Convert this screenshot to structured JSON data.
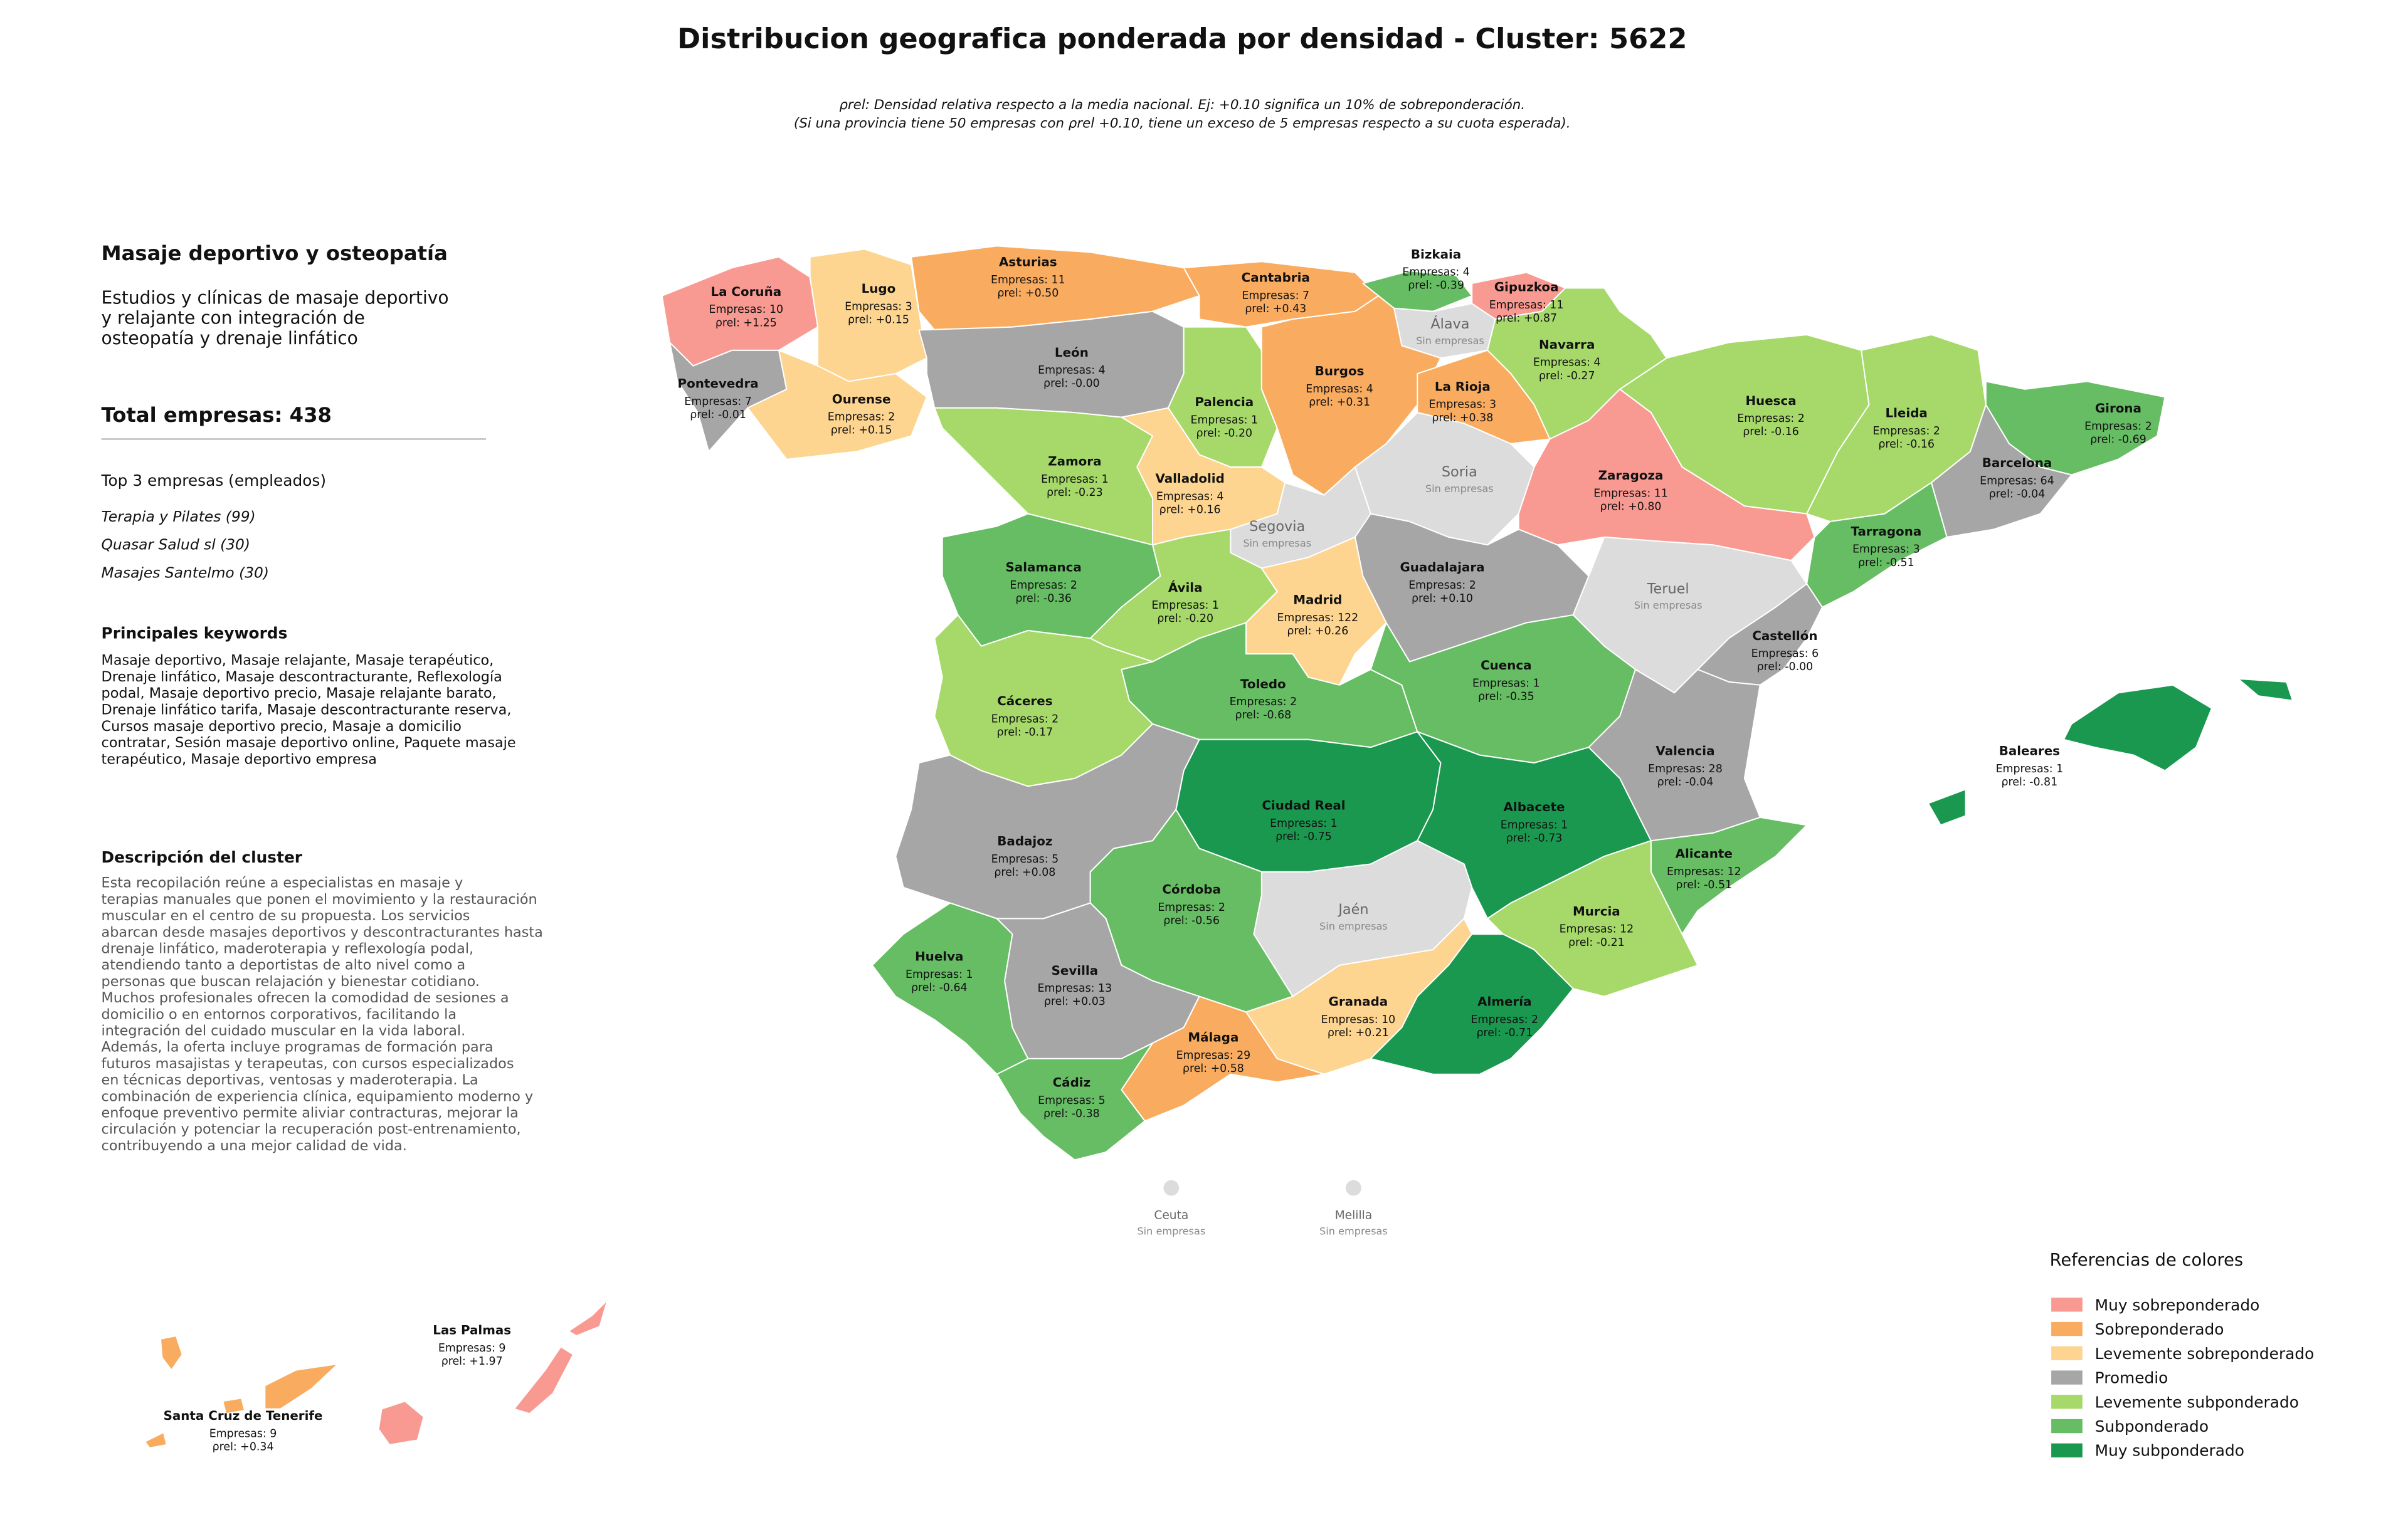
{
  "title": "Distribucion geografica ponderada por densidad - Cluster: 5622",
  "subtitle": [
    "ρrel: Densidad relativa respecto a la media nacional. Ej: +0.10 significa un 10% de sobreponderación.",
    "(Si una provincia tiene 50 empresas con ρrel +0.10, tiene un exceso de 5 empresas respecto a su cuota esperada)."
  ],
  "panel": {
    "heading": "Masaje deportivo y osteopatía",
    "description_lines": [
      "Estudios y clínicas de masaje deportivo",
      "y relajante con integración de",
      "osteopatía y drenaje linfático"
    ],
    "total": "Total empresas: 438",
    "top_title": "Top 3 empresas (empleados)",
    "top": [
      "Terapia y Pilates (99)",
      "Quasar Salud sl (30)",
      "Masajes Santelmo (30)"
    ],
    "keywords_title": "Principales keywords",
    "keywords_lines": [
      "Masaje deportivo, Masaje relajante, Masaje terapéutico,",
      "Drenaje linfático, Masaje descontracturante, Reflexología",
      "podal, Masaje deportivo precio, Masaje relajante barato,",
      "Drenaje linfático tarifa, Masaje descontracturante reserva,",
      "Cursos masaje deportivo precio, Masaje a domicilio",
      "contratar, Sesión masaje deportivo online, Paquete masaje",
      "terapéutico, Masaje deportivo empresa"
    ],
    "cluster_title": "Descripción del cluster",
    "cluster_lines": [
      "Esta recopilación reúne a especialistas en masaje y",
      "terapias manuales que ponen el movimiento y la restauración",
      "muscular en el centro de su propuesta. Los servicios",
      "abarcan desde masajes deportivos y descontracturantes hasta",
      "drenaje linfático, maderoterapia y reflexología podal,",
      "atendiendo tanto a deportistas de alto nivel como a",
      "personas que buscan relajación y bienestar cotidiano.",
      "Muchos profesionales ofrecen la comodidad de sesiones a",
      "domicilio o en entornos corporativos, facilitando la",
      "integración del cuidado muscular en la vida laboral.",
      "Además, la oferta incluye programas de formación para",
      "futuros masajistas y terapeutas, con cursos especializados",
      "en técnicas deportivas, ventosas y maderoterapia. La",
      "combinación de experiencia clínica, equipamiento moderno y",
      "enfoque preventivo permite aliviar contracturas, mejorar la",
      "circulación y potenciar la recuperación post-entrenamiento,",
      "contribuyendo a una mejor calidad de vida."
    ]
  },
  "legend": {
    "title": "Referencias de colores",
    "items": [
      {
        "label": "Muy sobreponderado",
        "color": "#f89a92"
      },
      {
        "label": "Sobreponderado",
        "color": "#f9ac60"
      },
      {
        "label": "Levemente sobreponderado",
        "color": "#fdd590"
      },
      {
        "label": "Promedio",
        "color": "#a6a6a6"
      },
      {
        "label": "Levemente subponderado",
        "color": "#a6d96a"
      },
      {
        "label": "Subponderado",
        "color": "#66bd63"
      },
      {
        "label": "Muy subponderado",
        "color": "#1a9850"
      }
    ]
  },
  "provinces": [
    {
      "name": "La Coruña",
      "color": "#f89a92",
      "empresas": "Empresas: 10",
      "rho": "ρrel: +1.25"
    },
    {
      "name": "Lugo",
      "color": "#fdd590",
      "empresas": "Empresas: 3",
      "rho": "ρrel: +0.15"
    },
    {
      "name": "Asturias",
      "color": "#f9ac60",
      "empresas": "Empresas: 11",
      "rho": "ρrel: +0.50"
    },
    {
      "name": "Cantabria",
      "color": "#f9ac60",
      "empresas": "Empresas: 7",
      "rho": "ρrel: +0.43"
    },
    {
      "name": "Bizkaia",
      "color": "#66bd63",
      "empresas": "Empresas: 4",
      "rho": "ρrel: -0.39"
    },
    {
      "name": "Gipuzkoa",
      "color": "#f89a92",
      "empresas": "Empresas: 11",
      "rho": "ρrel: +0.87"
    },
    {
      "name": "Álava",
      "color": "#dcdcdc",
      "note": "Sin empresas"
    },
    {
      "name": "Navarra",
      "color": "#a6d96a",
      "empresas": "Empresas: 4",
      "rho": "ρrel: -0.27"
    },
    {
      "name": "Pontevedra",
      "color": "#a6a6a6",
      "empresas": "Empresas: 7",
      "rho": "ρrel: -0.01"
    },
    {
      "name": "Ourense",
      "color": "#fdd590",
      "empresas": "Empresas: 2",
      "rho": "ρrel: +0.15"
    },
    {
      "name": "León",
      "color": "#a6a6a6",
      "empresas": "Empresas: 4",
      "rho": "ρrel: -0.00"
    },
    {
      "name": "Palencia",
      "color": "#a6d96a",
      "empresas": "Empresas: 1",
      "rho": "ρrel: -0.20"
    },
    {
      "name": "Burgos",
      "color": "#f9ac60",
      "empresas": "Empresas: 4",
      "rho": "ρrel: +0.31"
    },
    {
      "name": "La Rioja",
      "color": "#f9ac60",
      "empresas": "Empresas: 3",
      "rho": "ρrel: +0.38"
    },
    {
      "name": "Huesca",
      "color": "#a6d96a",
      "empresas": "Empresas: 2",
      "rho": "ρrel: -0.16"
    },
    {
      "name": "Lleida",
      "color": "#a6d96a",
      "empresas": "Empresas: 2",
      "rho": "ρrel: -0.16"
    },
    {
      "name": "Girona",
      "color": "#66bd63",
      "empresas": "Empresas: 2",
      "rho": "ρrel: -0.69"
    },
    {
      "name": "Zamora",
      "color": "#a6d96a",
      "empresas": "Empresas: 1",
      "rho": "ρrel: -0.23"
    },
    {
      "name": "Valladolid",
      "color": "#fdd590",
      "empresas": "Empresas: 4",
      "rho": "ρrel: +0.16"
    },
    {
      "name": "Soria",
      "color": "#dcdcdc",
      "note": "Sin empresas"
    },
    {
      "name": "Zaragoza",
      "color": "#f89a92",
      "empresas": "Empresas: 11",
      "rho": "ρrel: +0.80"
    },
    {
      "name": "Barcelona",
      "color": "#a6a6a6",
      "empresas": "Empresas: 64",
      "rho": "ρrel: -0.04"
    },
    {
      "name": "Segovia",
      "color": "#dcdcdc",
      "note": "Sin empresas"
    },
    {
      "name": "Salamanca",
      "color": "#66bd63",
      "empresas": "Empresas: 2",
      "rho": "ρrel: -0.36"
    },
    {
      "name": "Guadalajara",
      "color": "#a6a6a6",
      "empresas": "Empresas: 2",
      "rho": "ρrel: +0.10"
    },
    {
      "name": "Tarragona",
      "color": "#66bd63",
      "empresas": "Empresas: 3",
      "rho": "ρrel: -0.51"
    },
    {
      "name": "Teruel",
      "color": "#dcdcdc",
      "note": "Sin empresas"
    },
    {
      "name": "Ávila",
      "color": "#a6d96a",
      "empresas": "Empresas: 1",
      "rho": "ρrel: -0.20"
    },
    {
      "name": "Madrid",
      "color": "#fdd590",
      "empresas": "Empresas: 122",
      "rho": "ρrel: +0.26"
    },
    {
      "name": "Castellón",
      "color": "#a6a6a6",
      "empresas": "Empresas: 6",
      "rho": "ρrel: -0.00"
    },
    {
      "name": "Toledo",
      "color": "#66bd63",
      "empresas": "Empresas: 2",
      "rho": "ρrel: -0.68"
    },
    {
      "name": "Cuenca",
      "color": "#66bd63",
      "empresas": "Empresas: 1",
      "rho": "ρrel: -0.35"
    },
    {
      "name": "Cáceres",
      "color": "#a6d96a",
      "empresas": "Empresas: 2",
      "rho": "ρrel: -0.17"
    },
    {
      "name": "Valencia",
      "color": "#a6a6a6",
      "empresas": "Empresas: 28",
      "rho": "ρrel: -0.04"
    },
    {
      "name": "Baleares",
      "color": "#1a9850",
      "empresas": "Empresas: 1",
      "rho": "ρrel: -0.81"
    },
    {
      "name": "Ciudad Real",
      "color": "#1a9850",
      "empresas": "Empresas: 1",
      "rho": "ρrel: -0.75"
    },
    {
      "name": "Albacete",
      "color": "#1a9850",
      "empresas": "Empresas: 1",
      "rho": "ρrel: -0.73"
    },
    {
      "name": "Badajoz",
      "color": "#a6a6a6",
      "empresas": "Empresas: 5",
      "rho": "ρrel: +0.08"
    },
    {
      "name": "Alicante",
      "color": "#66bd63",
      "empresas": "Empresas: 12",
      "rho": "ρrel: -0.51"
    },
    {
      "name": "Córdoba",
      "color": "#66bd63",
      "empresas": "Empresas: 2",
      "rho": "ρrel: -0.56"
    },
    {
      "name": "Jaén",
      "color": "#dcdcdc",
      "note": "Sin empresas"
    },
    {
      "name": "Murcia",
      "color": "#a6d96a",
      "empresas": "Empresas: 12",
      "rho": "ρrel: -0.21"
    },
    {
      "name": "Huelva",
      "color": "#66bd63",
      "empresas": "Empresas: 1",
      "rho": "ρrel: -0.64"
    },
    {
      "name": "Sevilla",
      "color": "#a6a6a6",
      "empresas": "Empresas: 13",
      "rho": "ρrel: +0.03"
    },
    {
      "name": "Granada",
      "color": "#fdd590",
      "empresas": "Empresas: 10",
      "rho": "ρrel: +0.21"
    },
    {
      "name": "Almería",
      "color": "#1a9850",
      "empresas": "Empresas: 2",
      "rho": "ρrel: -0.71"
    },
    {
      "name": "Málaga",
      "color": "#f9ac60",
      "empresas": "Empresas: 29",
      "rho": "ρrel: +0.58"
    },
    {
      "name": "Cádiz",
      "color": "#66bd63",
      "empresas": "Empresas: 5",
      "rho": "ρrel: -0.38"
    },
    {
      "name": "Ceuta",
      "color": "#dcdcdc",
      "note": "Sin empresas"
    },
    {
      "name": "Melilla",
      "color": "#dcdcdc",
      "note": "Sin empresas"
    },
    {
      "name": "Las Palmas",
      "color": "#f89a92",
      "empresas": "Empresas: 9",
      "rho": "ρrel: +1.97"
    },
    {
      "name": "Santa Cruz de Tenerife",
      "color": "#f9ac60",
      "empresas": "Empresas: 9",
      "rho": "ρrel: +0.34"
    }
  ]
}
